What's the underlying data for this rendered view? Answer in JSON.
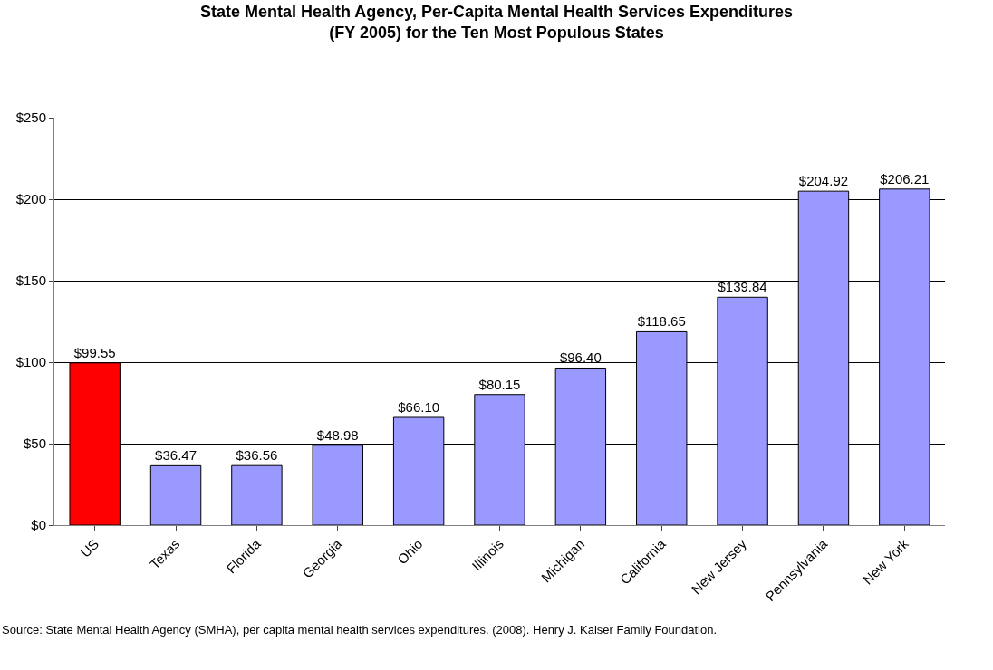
{
  "chart_data": {
    "type": "bar",
    "title": "State Mental Health Agency, Per-Capita Mental Health Services Expenditures\n(FY 2005) for the Ten Most Populous States",
    "categories": [
      "US",
      "Texas",
      "Florida",
      "Georgia",
      "Ohio",
      "Illinois",
      "Michigan",
      "California",
      "New Jersey",
      "Pennsylvania",
      "New York"
    ],
    "values": [
      99.55,
      36.47,
      36.56,
      48.98,
      66.1,
      80.15,
      96.4,
      118.65,
      139.84,
      204.92,
      206.21
    ],
    "value_labels": [
      "$99.55",
      "$36.47",
      "$36.56",
      "$48.98",
      "$66.10",
      "$80.15",
      "$96.40",
      "$118.65",
      "$139.84",
      "$204.92",
      "$206.21"
    ],
    "colors": [
      "#ff0000",
      "#9999ff",
      "#9999ff",
      "#9999ff",
      "#9999ff",
      "#9999ff",
      "#9999ff",
      "#9999ff",
      "#9999ff",
      "#9999ff",
      "#9999ff"
    ],
    "ylim": [
      0,
      250
    ],
    "yticks": [
      {
        "value": 0,
        "label": "$0"
      },
      {
        "value": 50,
        "label": "$50"
      },
      {
        "value": 100,
        "label": "$100"
      },
      {
        "value": 150,
        "label": "$150"
      },
      {
        "value": 200,
        "label": "$200"
      },
      {
        "value": 250,
        "label": "$250"
      }
    ],
    "grid": "y",
    "legend": false,
    "annotations": [
      "Source: State Mental Health Agency (SMHA), per capita mental health services expenditures. (2008). Henry J. Kaiser Family Foundation."
    ]
  }
}
